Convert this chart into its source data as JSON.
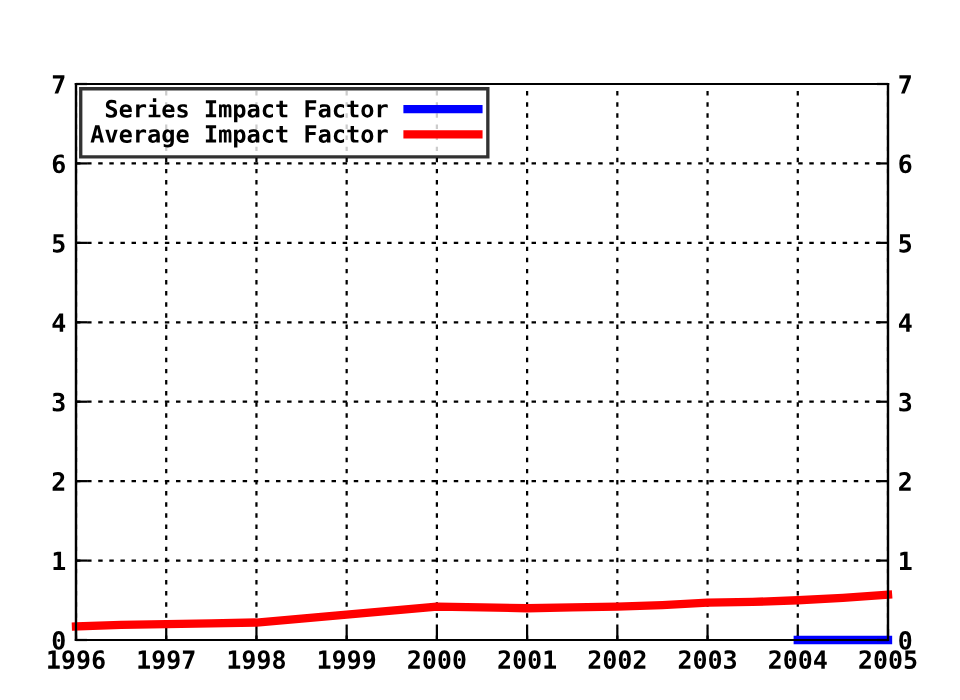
{
  "chart_data": {
    "type": "line",
    "series": [
      {
        "name": "Series Impact Factor",
        "color": "#0000ff",
        "x": [
          2004,
          2005
        ],
        "values": [
          0,
          0
        ]
      },
      {
        "name": "Average Impact Factor",
        "color": "#ff0000",
        "x": [
          1996,
          1996.5,
          1997,
          1997.5,
          1998,
          1998.5,
          1999,
          1999.5,
          2000,
          2000.5,
          2001,
          2001.5,
          2002,
          2002.5,
          2003,
          2003.5,
          2004,
          2004.5,
          2005
        ],
        "values": [
          0.17,
          0.19,
          0.2,
          0.21,
          0.22,
          0.27,
          0.32,
          0.37,
          0.42,
          0.41,
          0.4,
          0.41,
          0.42,
          0.44,
          0.47,
          0.48,
          0.5,
          0.53,
          0.57
        ]
      }
    ],
    "xlim": [
      1996,
      2005
    ],
    "xticks": [
      1996,
      1997,
      1998,
      1999,
      2000,
      2001,
      2002,
      2003,
      2004,
      2005
    ],
    "ylim": [
      0,
      7
    ],
    "yticks": [
      0,
      1,
      2,
      3,
      4,
      5,
      6,
      7
    ],
    "y2lim": [
      0,
      7
    ],
    "y2ticks": [
      0,
      1,
      2,
      3,
      4,
      5,
      6,
      7
    ],
    "grid": true,
    "legend": "top left",
    "line_style": "solid",
    "marker": "none"
  }
}
